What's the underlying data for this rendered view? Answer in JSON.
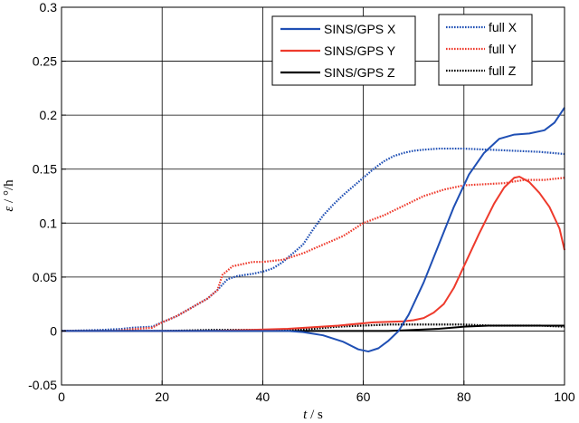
{
  "chart_data": {
    "type": "line",
    "title": "",
    "xlabel": {
      "var": "t",
      "unit": " / s"
    },
    "ylabel": {
      "var": "ε",
      "unit": " / °/h"
    },
    "xlim": [
      0,
      100
    ],
    "ylim": [
      -0.05,
      0.3
    ],
    "xticks": [
      0,
      20,
      40,
      60,
      80,
      100
    ],
    "yticks": [
      -0.05,
      0,
      0.05,
      0.1,
      0.15,
      0.2,
      0.25,
      0.3
    ],
    "ytick_labels": [
      "-0.05",
      "0",
      "0.05",
      "0.1",
      "0.15",
      "0.2",
      "0.25",
      "0.3"
    ],
    "grid": true,
    "legend_placement": "top-right",
    "series": [
      {
        "name": "SINS/GPS X",
        "color": "#1f4fb4",
        "style": "solid",
        "legend_group": 0,
        "points": [
          [
            0,
            0
          ],
          [
            40,
            0
          ],
          [
            45,
            0
          ],
          [
            48,
            -0.001
          ],
          [
            52,
            -0.004
          ],
          [
            56,
            -0.01
          ],
          [
            59,
            -0.017
          ],
          [
            61,
            -0.019
          ],
          [
            63,
            -0.016
          ],
          [
            65,
            -0.009
          ],
          [
            67,
            0
          ],
          [
            69,
            0.015
          ],
          [
            72,
            0.045
          ],
          [
            75,
            0.08
          ],
          [
            78,
            0.115
          ],
          [
            81,
            0.145
          ],
          [
            84,
            0.165
          ],
          [
            87,
            0.178
          ],
          [
            90,
            0.182
          ],
          [
            93,
            0.183
          ],
          [
            96,
            0.186
          ],
          [
            98,
            0.193
          ],
          [
            100,
            0.207
          ]
        ]
      },
      {
        "name": "SINS/GPS Y",
        "color": "#ee3a2c",
        "style": "solid",
        "legend_group": 0,
        "points": [
          [
            0,
            0
          ],
          [
            30,
            0
          ],
          [
            45,
            0.002
          ],
          [
            55,
            0.005
          ],
          [
            62,
            0.008
          ],
          [
            68,
            0.009
          ],
          [
            70,
            0.01
          ],
          [
            72,
            0.012
          ],
          [
            74,
            0.017
          ],
          [
            76,
            0.025
          ],
          [
            78,
            0.04
          ],
          [
            80,
            0.06
          ],
          [
            83,
            0.09
          ],
          [
            86,
            0.118
          ],
          [
            88,
            0.133
          ],
          [
            90,
            0.142
          ],
          [
            91,
            0.143
          ],
          [
            93,
            0.138
          ],
          [
            95,
            0.128
          ],
          [
            97,
            0.115
          ],
          [
            99,
            0.095
          ],
          [
            100,
            0.075
          ]
        ]
      },
      {
        "name": "SINS/GPS Z",
        "color": "#000000",
        "style": "solid",
        "legend_group": 0,
        "points": [
          [
            0,
            0
          ],
          [
            30,
            0
          ],
          [
            50,
            0
          ],
          [
            65,
            0
          ],
          [
            70,
            0.001
          ],
          [
            75,
            0.002
          ],
          [
            80,
            0.004
          ],
          [
            85,
            0.005
          ],
          [
            90,
            0.005
          ],
          [
            95,
            0.005
          ],
          [
            100,
            0.005
          ]
        ]
      },
      {
        "name": "full X",
        "color": "#1f4fb4",
        "style": "dotted",
        "legend_group": 1,
        "points": [
          [
            0,
            0
          ],
          [
            8,
            0.001
          ],
          [
            12,
            0.002
          ],
          [
            14,
            0.003
          ],
          [
            18,
            0.004
          ],
          [
            20,
            0.008
          ],
          [
            23,
            0.014
          ],
          [
            26,
            0.022
          ],
          [
            29,
            0.03
          ],
          [
            31,
            0.038
          ],
          [
            33,
            0.048
          ],
          [
            35,
            0.051
          ],
          [
            38,
            0.053
          ],
          [
            40,
            0.055
          ],
          [
            42,
            0.058
          ],
          [
            44,
            0.064
          ],
          [
            46,
            0.072
          ],
          [
            48,
            0.08
          ],
          [
            50,
            0.094
          ],
          [
            52,
            0.107
          ],
          [
            54,
            0.117
          ],
          [
            56,
            0.126
          ],
          [
            58,
            0.134
          ],
          [
            60,
            0.142
          ],
          [
            62,
            0.15
          ],
          [
            64,
            0.157
          ],
          [
            66,
            0.162
          ],
          [
            68,
            0.165
          ],
          [
            70,
            0.167
          ],
          [
            72,
            0.168
          ],
          [
            75,
            0.169
          ],
          [
            80,
            0.169
          ],
          [
            85,
            0.168
          ],
          [
            90,
            0.167
          ],
          [
            95,
            0.166
          ],
          [
            100,
            0.164
          ]
        ]
      },
      {
        "name": "full Y",
        "color": "#ee3a2c",
        "style": "dotted",
        "legend_group": 1,
        "points": [
          [
            0,
            0
          ],
          [
            10,
            0
          ],
          [
            15,
            0.002
          ],
          [
            18,
            0.003
          ],
          [
            20,
            0.008
          ],
          [
            23,
            0.014
          ],
          [
            26,
            0.022
          ],
          [
            29,
            0.03
          ],
          [
            31,
            0.038
          ],
          [
            32,
            0.052
          ],
          [
            34,
            0.06
          ],
          [
            36,
            0.062
          ],
          [
            38,
            0.064
          ],
          [
            40,
            0.064
          ],
          [
            44,
            0.066
          ],
          [
            48,
            0.072
          ],
          [
            52,
            0.08
          ],
          [
            56,
            0.088
          ],
          [
            60,
            0.1
          ],
          [
            64,
            0.107
          ],
          [
            68,
            0.116
          ],
          [
            72,
            0.125
          ],
          [
            76,
            0.131
          ],
          [
            80,
            0.135
          ],
          [
            84,
            0.136
          ],
          [
            88,
            0.137
          ],
          [
            92,
            0.14
          ],
          [
            96,
            0.14
          ],
          [
            100,
            0.142
          ]
        ]
      },
      {
        "name": "full Z",
        "color": "#000000",
        "style": "dotted",
        "legend_group": 1,
        "points": [
          [
            0,
            0
          ],
          [
            20,
            0
          ],
          [
            30,
            0.001
          ],
          [
            40,
            0.001
          ],
          [
            45,
            0.001
          ],
          [
            50,
            0.002
          ],
          [
            55,
            0.004
          ],
          [
            60,
            0.005
          ],
          [
            65,
            0.006
          ],
          [
            70,
            0.006
          ],
          [
            75,
            0.006
          ],
          [
            80,
            0.006
          ],
          [
            85,
            0.005
          ],
          [
            90,
            0.005
          ],
          [
            95,
            0.005
          ],
          [
            100,
            0.004
          ]
        ]
      }
    ]
  }
}
